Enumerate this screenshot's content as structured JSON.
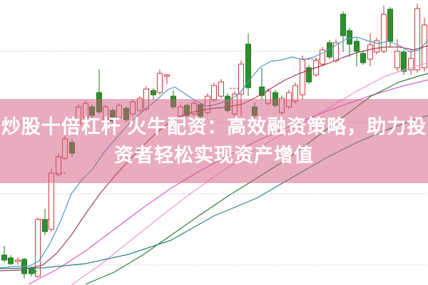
{
  "banner": {
    "line1": "炒股十倍杠杆 火牛配资：高效融资策略，助力投",
    "line2": "资者轻松实现资产增值",
    "text_color": "#ffffff",
    "overlay_color": "rgba(210,90,125,0.5)"
  },
  "chart_data": {
    "type": "candlestick",
    "title": "",
    "xlabel": "",
    "ylabel": "",
    "axes_visible": false,
    "note": "no axis tick labels visible; values in normalized units, value = (400 - y_px) / 4",
    "grid": {
      "on": true,
      "style": "dotted",
      "color": "#bbbbbb",
      "gridline_values": [
        82,
        57,
        32,
        7
      ]
    },
    "colors": {
      "up_stroke": "#c93a3a",
      "up_fill": "#ffffff",
      "down_fill": "#2f8f2f",
      "down_stroke": "#1e7a1e",
      "signal_star": "#2e9e3e",
      "dash_marker": "#c93a3a"
    },
    "candle_format": [
      "x",
      "open",
      "high",
      "low",
      "close",
      "direction(u=up-hollow-red,d=down-solid-green)"
    ],
    "candles": [
      [
        6,
        10.5,
        13.75,
        8,
        8.75,
        "d"
      ],
      [
        15,
        9.5,
        10.5,
        7,
        7.5,
        "d"
      ],
      [
        25,
        8.25,
        9.75,
        7.25,
        8.75,
        "u"
      ],
      [
        34,
        9,
        9.5,
        2.25,
        4,
        "d"
      ],
      [
        44,
        6,
        6.5,
        3,
        4,
        "d"
      ],
      [
        53,
        3,
        23.75,
        2.5,
        23,
        "u"
      ],
      [
        63,
        23,
        26.75,
        17.5,
        18.75,
        "d"
      ],
      [
        72,
        19.5,
        40.75,
        18.75,
        39.25,
        "u"
      ],
      [
        82,
        38.75,
        46.25,
        38,
        45,
        "u"
      ],
      [
        91,
        44.5,
        52.5,
        43.75,
        51.25,
        "u"
      ],
      [
        101,
        50,
        51.25,
        45,
        46.25,
        "d"
      ],
      [
        110,
        56.25,
        63.5,
        55.5,
        62.5,
        "u"
      ],
      [
        120,
        58.75,
        64.75,
        58,
        63.75,
        "u"
      ],
      [
        129,
        62.5,
        63.25,
        58.75,
        59.5,
        "d"
      ],
      [
        139,
        67.5,
        75.75,
        60,
        60.75,
        "d"
      ],
      [
        148,
        57.5,
        63.25,
        56.75,
        62.5,
        "u"
      ],
      [
        158,
        61.25,
        62,
        56.75,
        57.5,
        "d"
      ],
      [
        167,
        58.75,
        63.75,
        58,
        63,
        "u"
      ],
      [
        177,
        62,
        62.75,
        57.25,
        58,
        "d"
      ],
      [
        186,
        60,
        65,
        59.25,
        64.25,
        "u"
      ],
      [
        196,
        61.25,
        66.25,
        60.5,
        65.5,
        "u"
      ],
      [
        205,
        61.75,
        69.75,
        61,
        68.75,
        "u"
      ],
      [
        215,
        68.25,
        69,
        65,
        66.75,
        "d"
      ],
      [
        224,
        67.5,
        75.5,
        66.75,
        74.25,
        "u"
      ],
      [
        234,
        73.25,
        74,
        70.5,
        73.75,
        "u"
      ],
      [
        243,
        66.25,
        68.25,
        61.75,
        62.5,
        "d"
      ],
      [
        253,
        59.25,
        63.25,
        58.5,
        62.5,
        "u"
      ],
      [
        262,
        63,
        63.75,
        58.75,
        59.5,
        "d"
      ],
      [
        272,
        60,
        64.5,
        59.25,
        63.75,
        "u"
      ],
      [
        281,
        63.25,
        64,
        58.5,
        59.25,
        "d"
      ],
      [
        291,
        60.5,
        67.25,
        59.75,
        66.25,
        "u"
      ],
      [
        300,
        65,
        71,
        64.25,
        70,
        "u"
      ],
      [
        310,
        66.25,
        72.25,
        65.5,
        71.25,
        "u"
      ],
      [
        319,
        66.25,
        67.25,
        60.5,
        61.25,
        "d"
      ],
      [
        329,
        60,
        68,
        59.25,
        67,
        "u"
      ],
      [
        338,
        67,
        78.75,
        59.25,
        77.5,
        "u"
      ],
      [
        348,
        84.5,
        88.25,
        66.25,
        69.25,
        "d"
      ],
      [
        357,
        62.5,
        64,
        58.5,
        59.5,
        "d"
      ],
      [
        367,
        69.5,
        76.25,
        65,
        66.5,
        "d"
      ],
      [
        376,
        63.75,
        69,
        63,
        68,
        "u"
      ],
      [
        386,
        67.5,
        68.5,
        62.25,
        63,
        "d"
      ],
      [
        395,
        60.5,
        66.5,
        59.75,
        65.5,
        "u"
      ],
      [
        405,
        62.5,
        68.5,
        61.75,
        67.5,
        "u"
      ],
      [
        414,
        64.5,
        71,
        63.75,
        70,
        "u"
      ],
      [
        424,
        66.75,
        80.5,
        65,
        79.25,
        "u"
      ],
      [
        433,
        76.25,
        77.25,
        70.5,
        71.25,
        "d"
      ],
      [
        443,
        73.75,
        79.75,
        73,
        78.75,
        "u"
      ],
      [
        452,
        77.5,
        83.5,
        76.75,
        82.5,
        "u"
      ],
      [
        462,
        85,
        86,
        79.25,
        80,
        "d"
      ],
      [
        471,
        78.75,
        86.25,
        78,
        85,
        "u"
      ],
      [
        481,
        95,
        96,
        81.75,
        87.5,
        "d"
      ],
      [
        490,
        89.25,
        90.25,
        80,
        84.5,
        "d"
      ],
      [
        500,
        85.5,
        86.5,
        76.75,
        82,
        "d"
      ],
      [
        509,
        81.25,
        82.25,
        77.25,
        78,
        "d"
      ],
      [
        519,
        79.25,
        88.25,
        76.75,
        84.25,
        "u"
      ],
      [
        528,
        81.75,
        86.75,
        81,
        85.75,
        "u"
      ],
      [
        538,
        82,
        98,
        81.25,
        95,
        "u"
      ],
      [
        547,
        96.75,
        97.5,
        83.25,
        85.5,
        "d"
      ],
      [
        557,
        76.25,
        86.25,
        75,
        82,
        "u"
      ],
      [
        566,
        81.75,
        82.5,
        73.75,
        75,
        "d"
      ],
      [
        576,
        75.5,
        82.5,
        73.75,
        79.5,
        "u"
      ],
      [
        585,
        75.5,
        98.75,
        74.5,
        97,
        "u"
      ],
      [
        595,
        76.25,
        93.75,
        75,
        91.25,
        "u"
      ]
    ],
    "gap_dashes": [
      [
        57,
        71,
        23
      ],
      [
        79,
        93,
        39.25
      ],
      [
        322,
        334,
        69
      ],
      [
        431,
        448,
        79.25
      ]
    ],
    "signal_star": {
      "x": 48,
      "value": 4.75
    },
    "series": [
      {
        "name": "ma-blue",
        "color": "#4f9ac2",
        "points": [
          [
            0,
            6
          ],
          [
            20,
            6.5
          ],
          [
            40,
            6.5
          ],
          [
            55,
            8.5
          ],
          [
            70,
            14.5
          ],
          [
            85,
            22.5
          ],
          [
            100,
            32
          ],
          [
            115,
            37
          ],
          [
            130,
            40.75
          ],
          [
            145,
            46.25
          ],
          [
            160,
            50.75
          ],
          [
            175,
            55
          ],
          [
            190,
            58.75
          ],
          [
            205,
            62
          ],
          [
            220,
            65
          ],
          [
            235,
            68.5
          ],
          [
            245,
            69.5
          ],
          [
            260,
            67
          ],
          [
            275,
            64.5
          ],
          [
            290,
            62.75
          ],
          [
            305,
            63.5
          ],
          [
            320,
            64.75
          ],
          [
            335,
            67
          ],
          [
            350,
            72
          ],
          [
            365,
            76.5
          ],
          [
            380,
            78.5
          ],
          [
            395,
            79
          ],
          [
            410,
            80
          ],
          [
            425,
            79
          ],
          [
            440,
            80
          ],
          [
            455,
            81.75
          ],
          [
            470,
            84
          ],
          [
            485,
            86.25
          ],
          [
            500,
            87
          ],
          [
            515,
            85.75
          ],
          [
            530,
            84.75
          ],
          [
            545,
            85.5
          ],
          [
            560,
            84
          ],
          [
            575,
            81.75
          ],
          [
            588,
            82.5
          ],
          [
            600,
            86
          ]
        ]
      },
      {
        "name": "ma-maroon",
        "color": "#9e4257",
        "points": [
          [
            0,
            5
          ],
          [
            30,
            5.25
          ],
          [
            60,
            7
          ],
          [
            80,
            11.25
          ],
          [
            100,
            17.5
          ],
          [
            120,
            25
          ],
          [
            140,
            32
          ],
          [
            160,
            38
          ],
          [
            180,
            43.5
          ],
          [
            200,
            48.75
          ],
          [
            220,
            53.5
          ],
          [
            240,
            57.5
          ],
          [
            260,
            60
          ],
          [
            280,
            61.25
          ],
          [
            300,
            62
          ],
          [
            320,
            62.5
          ],
          [
            340,
            63.5
          ],
          [
            360,
            66
          ],
          [
            380,
            69
          ],
          [
            400,
            72
          ],
          [
            420,
            74.25
          ],
          [
            440,
            76
          ],
          [
            460,
            77.75
          ],
          [
            480,
            79.75
          ],
          [
            500,
            81.5
          ],
          [
            520,
            82.75
          ],
          [
            540,
            83.5
          ],
          [
            560,
            83.5
          ],
          [
            580,
            82.5
          ],
          [
            600,
            84
          ]
        ]
      },
      {
        "name": "ma-pink",
        "color": "#f097d4",
        "points": [
          [
            100,
            0
          ],
          [
            140,
            7
          ],
          [
            180,
            15
          ],
          [
            220,
            23
          ],
          [
            260,
            30.75
          ],
          [
            300,
            38
          ],
          [
            340,
            44.5
          ],
          [
            380,
            50.75
          ],
          [
            420,
            56.25
          ],
          [
            460,
            62
          ],
          [
            500,
            68
          ],
          [
            540,
            73.25
          ],
          [
            570,
            75.75
          ],
          [
            600,
            78
          ]
        ]
      },
      {
        "name": "ma-magenta",
        "color": "#d95fc1",
        "points": [
          [
            40,
            0.25
          ],
          [
            80,
            5.5
          ],
          [
            120,
            12
          ],
          [
            160,
            19.5
          ],
          [
            200,
            27
          ],
          [
            240,
            34
          ],
          [
            280,
            40
          ],
          [
            320,
            45.5
          ],
          [
            360,
            50.5
          ],
          [
            400,
            55
          ],
          [
            440,
            59.25
          ],
          [
            480,
            63
          ],
          [
            520,
            66.5
          ],
          [
            560,
            69.5
          ],
          [
            600,
            72
          ]
        ]
      },
      {
        "name": "ma-green",
        "color": "#2e7d3c",
        "points": [
          [
            120,
            0.25
          ],
          [
            160,
            4.5
          ],
          [
            200,
            10.5
          ],
          [
            240,
            17.5
          ],
          [
            280,
            24.5
          ],
          [
            320,
            31.25
          ],
          [
            360,
            37.5
          ],
          [
            400,
            43.75
          ],
          [
            440,
            51.25
          ],
          [
            480,
            58.75
          ],
          [
            520,
            66.25
          ],
          [
            560,
            71.25
          ],
          [
            600,
            74.25
          ]
        ]
      },
      {
        "name": "ma-teal",
        "color": "#2e8087",
        "points": [
          [
            0,
            5.75
          ],
          [
            60,
            6
          ],
          [
            120,
            7.5
          ],
          [
            180,
            10.75
          ],
          [
            240,
            15.75
          ],
          [
            300,
            24.25
          ],
          [
            360,
            30.5
          ],
          [
            420,
            39.25
          ],
          [
            460,
            45
          ],
          [
            500,
            50
          ],
          [
            540,
            54.25
          ],
          [
            570,
            57
          ],
          [
            600,
            59.5
          ]
        ]
      }
    ]
  }
}
